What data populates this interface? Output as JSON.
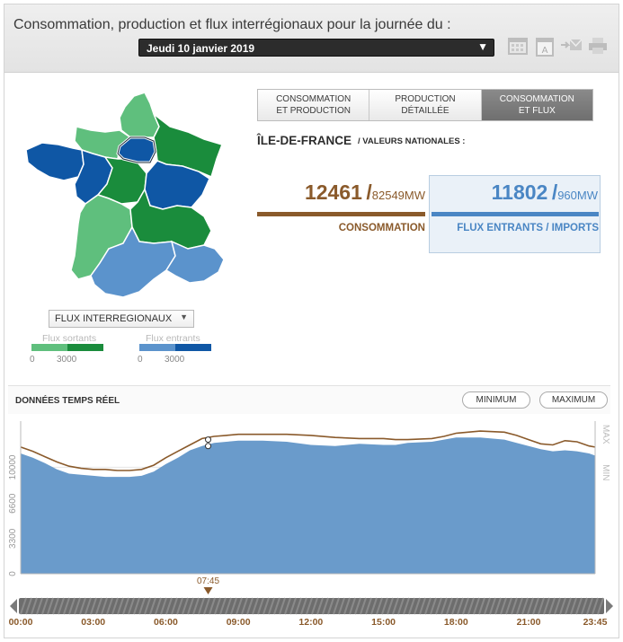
{
  "header": {
    "title": "Consommation, production et flux interrégionaux pour la journée du :",
    "date_value": "Jeudi 10 janvier 2019",
    "icons": [
      "calendar-icon",
      "calendar-day-icon",
      "email-icon",
      "print-icon"
    ]
  },
  "map": {
    "select_value": "FLUX INTERREGIONAUX",
    "legend": {
      "out_label": "Flux sortants",
      "in_label": "Flux entrants",
      "out_min": "0",
      "out_max": "3000",
      "in_min": "0",
      "in_max": "3000"
    },
    "colors": {
      "out_light": "#5fbf7d",
      "out_dark": "#1a8c3c",
      "in_light": "#5b93cc",
      "in_dark": "#0f57a5"
    }
  },
  "tabs": [
    {
      "label": "CONSOMMATION\nET PRODUCTION",
      "active": false
    },
    {
      "label": "PRODUCTION\nDÉTAILLÉE",
      "active": false
    },
    {
      "label": "CONSOMMATION\nET FLUX",
      "active": true
    }
  ],
  "region": {
    "name": "ÎLE-DE-FRANCE",
    "subtitle": "/ VALEURS NATIONALES :"
  },
  "stats": {
    "consumption_value": "12461",
    "consumption_national": "82549MW",
    "consumption_label": "CONSOMMATION",
    "flux_value": "11802",
    "flux_national": "960MW",
    "flux_label": "FLUX ENTRANTS / IMPORTS",
    "separator": "/"
  },
  "realtime": {
    "title": "DONNÉES TEMPS RÉEL",
    "min_button": "MINIMUM",
    "max_button": "MAXIMUM",
    "cursor_time": "07:45"
  },
  "chart_data": {
    "type": "area",
    "y_ticks": [
      "0",
      "3300",
      "6600",
      "10000"
    ],
    "ylim": [
      0,
      14000
    ],
    "right_labels": [
      "MAX",
      "MIN"
    ],
    "x_ticks": [
      "00:00",
      "03:00",
      "06:00",
      "09:00",
      "12:00",
      "15:00",
      "18:00",
      "21:00",
      "23:45"
    ],
    "xlim_hours": [
      0,
      23.75
    ],
    "series": [
      {
        "color": "#8a5a2b",
        "x_hours": [
          0,
          0.5,
          1,
          1.5,
          2,
          2.5,
          3,
          3.5,
          4,
          4.5,
          5,
          5.5,
          6,
          6.5,
          7,
          7.5,
          8,
          8.5,
          9,
          10,
          11,
          12,
          13,
          14,
          15,
          15.5,
          16,
          17,
          17.5,
          18,
          19,
          20,
          20.5,
          21,
          21.5,
          22,
          22.5,
          23,
          23.5,
          23.75
        ],
        "values": [
          11900,
          11500,
          11000,
          10500,
          10100,
          9900,
          9800,
          9800,
          9700,
          9700,
          9800,
          10200,
          10900,
          11500,
          12100,
          12700,
          12900,
          13000,
          13100,
          13100,
          13100,
          13000,
          12800,
          12700,
          12700,
          12600,
          12600,
          12700,
          12900,
          13200,
          13400,
          13300,
          13000,
          12600,
          12200,
          12100,
          12500,
          12400,
          12000,
          11900
        ]
      },
      {
        "color": "#6a9bcb",
        "x_hours": [
          0,
          0.5,
          1,
          1.5,
          2,
          2.5,
          3,
          3.5,
          4,
          4.5,
          5,
          5.5,
          6,
          6.5,
          7,
          7.5,
          8,
          8.5,
          9,
          10,
          11,
          12,
          13,
          14,
          15,
          15.5,
          16,
          17,
          17.5,
          18,
          19,
          20,
          20.5,
          21,
          21.5,
          22,
          22.5,
          23,
          23.5,
          23.75
        ],
        "values": [
          11300,
          10900,
          10400,
          9800,
          9400,
          9300,
          9200,
          9100,
          9100,
          9100,
          9200,
          9600,
          10300,
          10900,
          11600,
          12000,
          12300,
          12400,
          12500,
          12500,
          12400,
          12100,
          12000,
          12200,
          12100,
          12100,
          12300,
          12400,
          12600,
          12800,
          12800,
          12600,
          12300,
          12000,
          11700,
          11500,
          11600,
          11500,
          11300,
          11100
        ]
      }
    ]
  }
}
